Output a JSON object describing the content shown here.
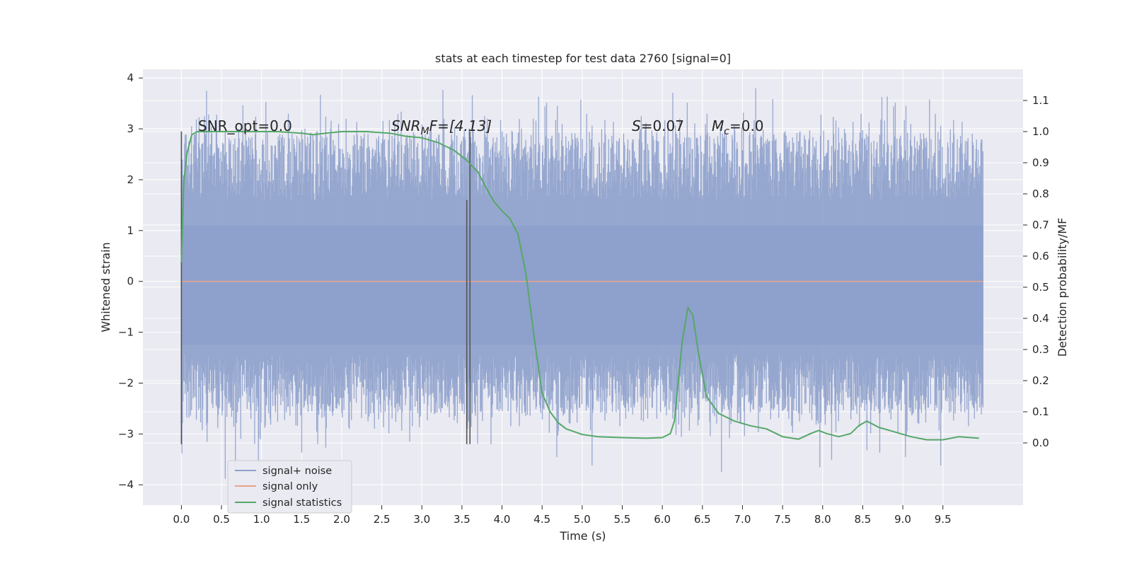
{
  "chart_data": {
    "type": "line",
    "title": "stats at each timestep for test data 2760 [signal=0]",
    "xlabel": "Time (s)",
    "ylabel_left": "Whitened strain",
    "ylabel_right": "Detection probability/MF",
    "xlim": [
      -0.48,
      10.5
    ],
    "ylim_left": [
      -4.4,
      4.17
    ],
    "ylim_right": [
      -0.2,
      1.2
    ],
    "x_ticks": [
      0.0,
      0.5,
      1.0,
      1.5,
      2.0,
      2.5,
      3.0,
      3.5,
      4.0,
      4.5,
      5.0,
      5.5,
      6.0,
      6.5,
      7.0,
      7.5,
      8.0,
      8.5,
      9.0,
      9.5
    ],
    "x_tick_labels": [
      "0.0",
      "0.5",
      "1.0",
      "1.5",
      "2.0",
      "2.5",
      "3.0",
      "3.5",
      "4.0",
      "4.5",
      "5.0",
      "5.5",
      "6.0",
      "6.5",
      "7.0",
      "7.5",
      "8.0",
      "8.5",
      "9.0",
      "9.5"
    ],
    "y_left_ticks": [
      -4,
      -3,
      -2,
      -1,
      0,
      1,
      2,
      3,
      4
    ],
    "y_left_tick_labels": [
      "−4",
      "−3",
      "−2",
      "−1",
      "0",
      "1",
      "2",
      "3",
      "4"
    ],
    "y_right_ticks": [
      0.0,
      0.1,
      0.2,
      0.3,
      0.4,
      0.5,
      0.6,
      0.7,
      0.8,
      0.9,
      1.0,
      1.1
    ],
    "y_right_tick_labels": [
      "0.0",
      "0.1",
      "0.2",
      "0.3",
      "0.4",
      "0.5",
      "0.6",
      "0.7",
      "0.8",
      "0.9",
      "1.0",
      "1.1"
    ],
    "grid": true,
    "legend_position": "lower-left",
    "series": [
      {
        "name": "signal+ noise",
        "axis": "left",
        "color": "#8da0cb",
        "style": "noise",
        "x_range": [
          0.0,
          10.0
        ],
        "typical_band": [
          -2.6,
          2.9
        ],
        "extremes": [
          -4.05,
          3.8
        ]
      },
      {
        "name": "signal only",
        "axis": "left",
        "color": "#e8a38a",
        "x": [
          0.0,
          10.0
        ],
        "y": [
          0.0,
          0.0
        ]
      },
      {
        "name": "signal statistics",
        "axis": "right",
        "color": "#55a868",
        "x": [
          0.0,
          0.03,
          0.07,
          0.13,
          0.2,
          0.4,
          0.8,
          1.2,
          1.5,
          1.65,
          1.8,
          2.0,
          2.3,
          2.6,
          2.8,
          3.0,
          3.2,
          3.4,
          3.55,
          3.7,
          3.8,
          3.9,
          4.0,
          4.1,
          4.2,
          4.3,
          4.4,
          4.45,
          4.5,
          4.6,
          4.7,
          4.8,
          5.0,
          5.2,
          5.5,
          5.8,
          6.0,
          6.1,
          6.15,
          6.2,
          6.25,
          6.32,
          6.38,
          6.45,
          6.55,
          6.7,
          6.9,
          7.1,
          7.3,
          7.5,
          7.7,
          7.85,
          7.95,
          8.05,
          8.2,
          8.35,
          8.45,
          8.55,
          8.7,
          8.9,
          9.1,
          9.3,
          9.5,
          9.7,
          9.95
        ],
        "y": [
          0.58,
          0.84,
          0.93,
          0.99,
          1.0,
          1.0,
          1.0,
          1.0,
          0.995,
          0.99,
          0.995,
          1.0,
          1.0,
          0.995,
          0.985,
          0.98,
          0.965,
          0.94,
          0.91,
          0.87,
          0.82,
          0.775,
          0.745,
          0.72,
          0.67,
          0.54,
          0.34,
          0.25,
          0.16,
          0.1,
          0.065,
          0.045,
          0.027,
          0.02,
          0.017,
          0.015,
          0.017,
          0.03,
          0.07,
          0.2,
          0.33,
          0.435,
          0.41,
          0.29,
          0.15,
          0.095,
          0.07,
          0.055,
          0.045,
          0.02,
          0.012,
          0.03,
          0.04,
          0.03,
          0.02,
          0.03,
          0.055,
          0.07,
          0.05,
          0.035,
          0.02,
          0.01,
          0.01,
          0.02,
          0.015
        ]
      }
    ],
    "annotations": {
      "snr_opt": "SNR_opt=0.0",
      "snr_mf_main": "SNR",
      "snr_mf_sub": "M",
      "snr_mf_tail": "F=[4.13]",
      "s_main": "S",
      "s_tail": "=0.07",
      "mc_main": "M",
      "mc_sub": "c",
      "mc_tail": "=0.0"
    },
    "vertical_markers": [
      {
        "x": 0.0,
        "y_from": -3.2,
        "y_to": 2.95,
        "color": "#555555"
      },
      {
        "x": 3.56,
        "y_from": -3.2,
        "y_to": 1.6,
        "color": "#555555"
      },
      {
        "x": 3.6,
        "y_from": -3.2,
        "y_to": 2.95,
        "color": "#555555"
      }
    ],
    "colors": {
      "background": "#eaeaf2",
      "grid": "#ffffff",
      "text": "#262626"
    }
  }
}
